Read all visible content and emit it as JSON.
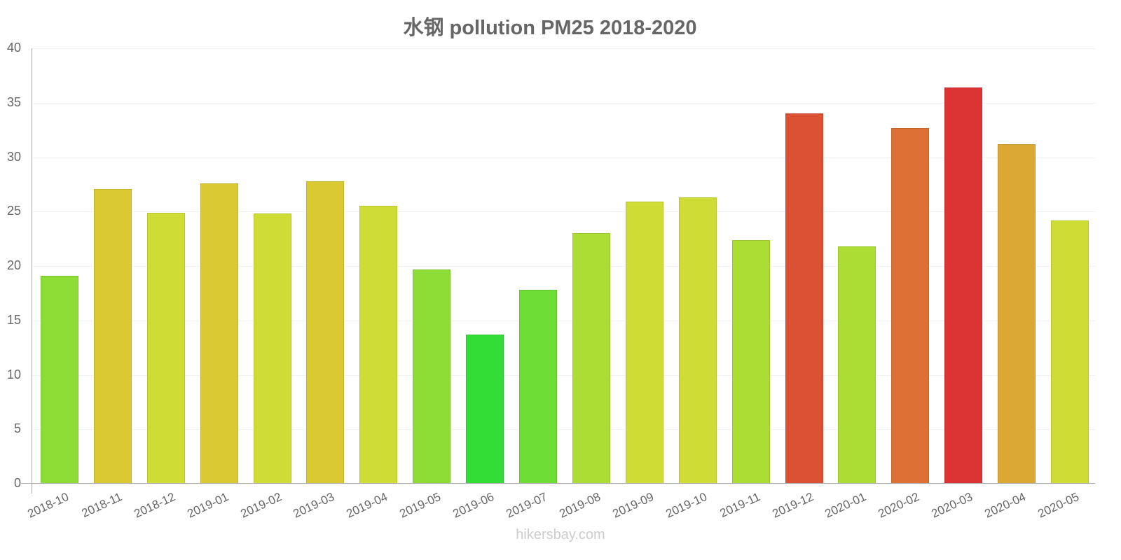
{
  "chart_data": {
    "type": "bar",
    "title": "水钢 pollution PM25 2018-2020",
    "xlabel": "",
    "ylabel": "",
    "ylim": [
      0,
      40
    ],
    "yticks": [
      0,
      5,
      10,
      15,
      20,
      25,
      30,
      35,
      40
    ],
    "grid": true,
    "legend": null,
    "categories": [
      "2018-10",
      "2018-11",
      "2018-12",
      "2019-01",
      "2019-02",
      "2019-03",
      "2019-04",
      "2019-05",
      "2019-06",
      "2019-07",
      "2019-08",
      "2019-09",
      "2019-10",
      "2019-11",
      "2019-12",
      "2020-01",
      "2020-02",
      "2020-03",
      "2020-04",
      "2020-05"
    ],
    "values": [
      19.1,
      27.1,
      24.9,
      27.6,
      24.8,
      27.8,
      25.5,
      19.7,
      13.7,
      17.8,
      23.0,
      25.9,
      26.3,
      22.4,
      34.0,
      21.8,
      32.7,
      36.4,
      31.2,
      24.2
    ],
    "colors": [
      "#8ddd36",
      "#dbc934",
      "#cfdc35",
      "#dbc934",
      "#cfdc35",
      "#dbc934",
      "#cfdc35",
      "#8ddd36",
      "#33dd36",
      "#6ddd36",
      "#acdd35",
      "#cfdc35",
      "#cfdc35",
      "#acdd35",
      "#dc5034",
      "#acdd35",
      "#dd7034",
      "#dc3434",
      "#dca834",
      "#cfdc35"
    ]
  },
  "watermark": "hikersbay.com"
}
